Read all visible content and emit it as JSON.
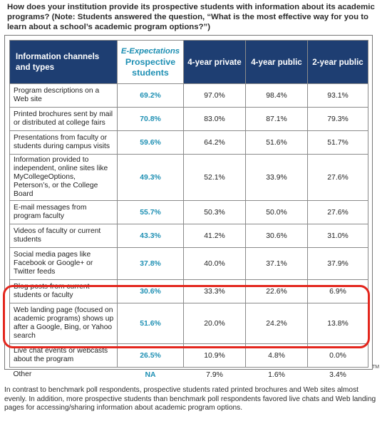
{
  "question": "How does your institution provide its prospective students with information about its academic programs? (Note: Students answered the question, “What is the most effective way for you to learn about a school’s academic program options?”)",
  "table": {
    "headers": {
      "channel": "Information channels and types",
      "prospective_brand": "E-Expectations",
      "prospective_title": "Prospective students",
      "private4": "4-year private",
      "public4": "4-year public",
      "public2": "2-year public"
    },
    "rows": [
      {
        "label": "Program descriptions on a Web site",
        "prospective": "69.2%",
        "private4": "97.0%",
        "public4": "98.4%",
        "public2": "93.1%"
      },
      {
        "label": "Printed brochures sent by mail or distributed at college fairs",
        "prospective": "70.8%",
        "private4": "83.0%",
        "public4": "87.1%",
        "public2": "79.3%"
      },
      {
        "label": "Presentations from faculty or students during campus visits",
        "prospective": "59.6%",
        "private4": "64.2%",
        "public4": "51.6%",
        "public2": "51.7%"
      },
      {
        "label": "Information provided to independent, online sites like MyCollegeOptions, Peterson’s, or the College Board",
        "prospective": "49.3%",
        "private4": "52.1%",
        "public4": "33.9%",
        "public2": "27.6%"
      },
      {
        "label": "E-mail messages from program faculty",
        "prospective": "55.7%",
        "private4": "50.3%",
        "public4": "50.0%",
        "public2": "27.6%"
      },
      {
        "label": "Videos of faculty or current students",
        "prospective": "43.3%",
        "private4": "41.2%",
        "public4": "30.6%",
        "public2": "31.0%"
      },
      {
        "label": "Social media pages like Facebook or Google+ or Twitter feeds",
        "prospective": "37.8%",
        "private4": "40.0%",
        "public4": "37.1%",
        "public2": "37.9%"
      },
      {
        "label": "Blog posts from current students or faculty",
        "prospective": "30.6%",
        "private4": "33.3%",
        "public4": "22.6%",
        "public2": "6.9%"
      },
      {
        "label": "Web landing page (focused on academic programs) shows up after a Google, Bing, or Yahoo search",
        "prospective": "51.6%",
        "private4": "20.0%",
        "public4": "24.2%",
        "public2": "13.8%"
      },
      {
        "label": "Live chat events or webcasts about the program",
        "prospective": "26.5%",
        "private4": "10.9%",
        "public4": "4.8%",
        "public2": "0.0%"
      },
      {
        "label": "Other",
        "prospective": "NA",
        "private4": "7.9%",
        "public4": "1.6%",
        "public2": "3.4%"
      }
    ]
  },
  "trademark": "TM",
  "footnote": "In contrast to benchmark poll respondents, prospective students rated printed brochures and Web sites almost evenly. In addition, more prospective students than benchmark poll respondents favored live chats and Web landing pages for accessing/sharing information about academic program options.",
  "colors": {
    "header_bg": "#1e3e72",
    "prospective_accent": "#1d8fb3",
    "highlight": "#e3261d"
  }
}
